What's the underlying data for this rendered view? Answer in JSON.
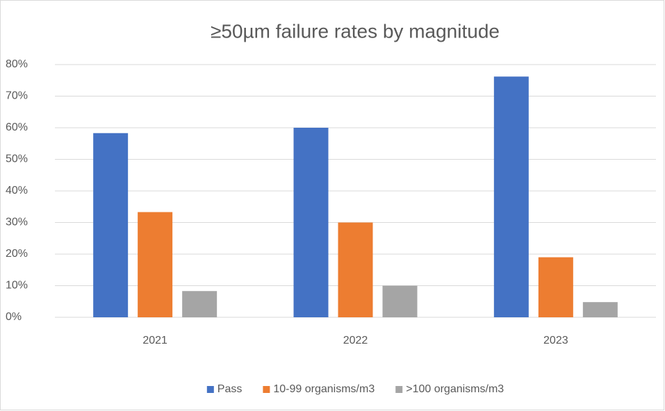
{
  "chart_data": {
    "type": "bar",
    "title": "≥50µm failure rates by magnitude",
    "categories": [
      "2021",
      "2022",
      "2023"
    ],
    "series": [
      {
        "name": "Pass",
        "color": "#4472c4",
        "values": [
          58.3,
          60,
          76.2
        ]
      },
      {
        "name": "10-99 organisms/m3",
        "color": "#ed7d31",
        "values": [
          33.3,
          30,
          19.0
        ]
      },
      {
        "name": ">100 organisms/m3",
        "color": "#a5a5a5",
        "values": [
          8.3,
          10,
          4.8
        ]
      }
    ],
    "ylim": [
      0,
      80
    ],
    "yticks": [
      {
        "value": 0,
        "label": "0%"
      },
      {
        "value": 10,
        "label": "10%"
      },
      {
        "value": 20,
        "label": "20%"
      },
      {
        "value": 30,
        "label": "30%"
      },
      {
        "value": 40,
        "label": "40%"
      },
      {
        "value": 50,
        "label": "50%"
      },
      {
        "value": 60,
        "label": "60%"
      },
      {
        "value": 70,
        "label": "70%"
      },
      {
        "value": 80,
        "label": "80%"
      }
    ],
    "grid": true,
    "legend": "bottom"
  }
}
